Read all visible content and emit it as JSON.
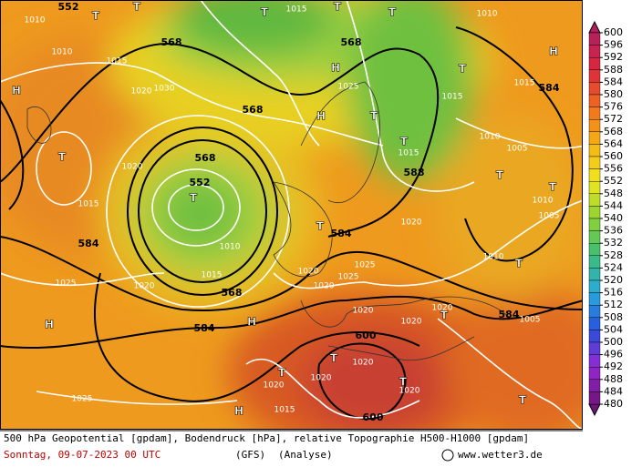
{
  "map": {
    "labels": [
      "552",
      "T",
      "T",
      "1010",
      "1015",
      "T",
      "T",
      "T",
      "568",
      "568",
      "1010",
      "1015",
      "1020",
      "1030",
      "H",
      "T",
      "1015",
      "1020",
      "H",
      "H",
      "1025",
      "568",
      "T",
      "1015",
      "588",
      "568",
      "552",
      "T",
      "1010",
      "1015",
      "584",
      "1025",
      "1020",
      "568",
      "584",
      "H",
      "H",
      "584",
      "T",
      "1020",
      "1025",
      "1020",
      "1020",
      "1020",
      "600",
      "T",
      "1020",
      "1020",
      "T",
      "1020",
      "600",
      "T",
      "1020",
      "H",
      "1015",
      "1025",
      "584",
      "T",
      "1020",
      "1010",
      "T",
      "1005",
      "T",
      "T",
      "1010",
      "1005",
      "H",
      "584",
      "1015",
      "1010",
      "T",
      "1015",
      "T",
      "1010",
      "T",
      "1005",
      "1025",
      "1020"
    ]
  },
  "legend": {
    "ticks": [
      600,
      596,
      592,
      588,
      584,
      580,
      576,
      572,
      568,
      564,
      560,
      556,
      552,
      548,
      544,
      540,
      536,
      532,
      528,
      524,
      520,
      516,
      512,
      508,
      504,
      500,
      496,
      492,
      488,
      484,
      480
    ]
  },
  "footer": {
    "line1": "500 hPa Geopotential [gpdam], Bodendruck [hPa], relative Topographie H500-H1000 [gpdam]",
    "date": "Sonntag, 09-07-2023  00 UTC",
    "model": "(GFS)",
    "run": "(Analyse)",
    "site": "www.wetter3.de"
  }
}
